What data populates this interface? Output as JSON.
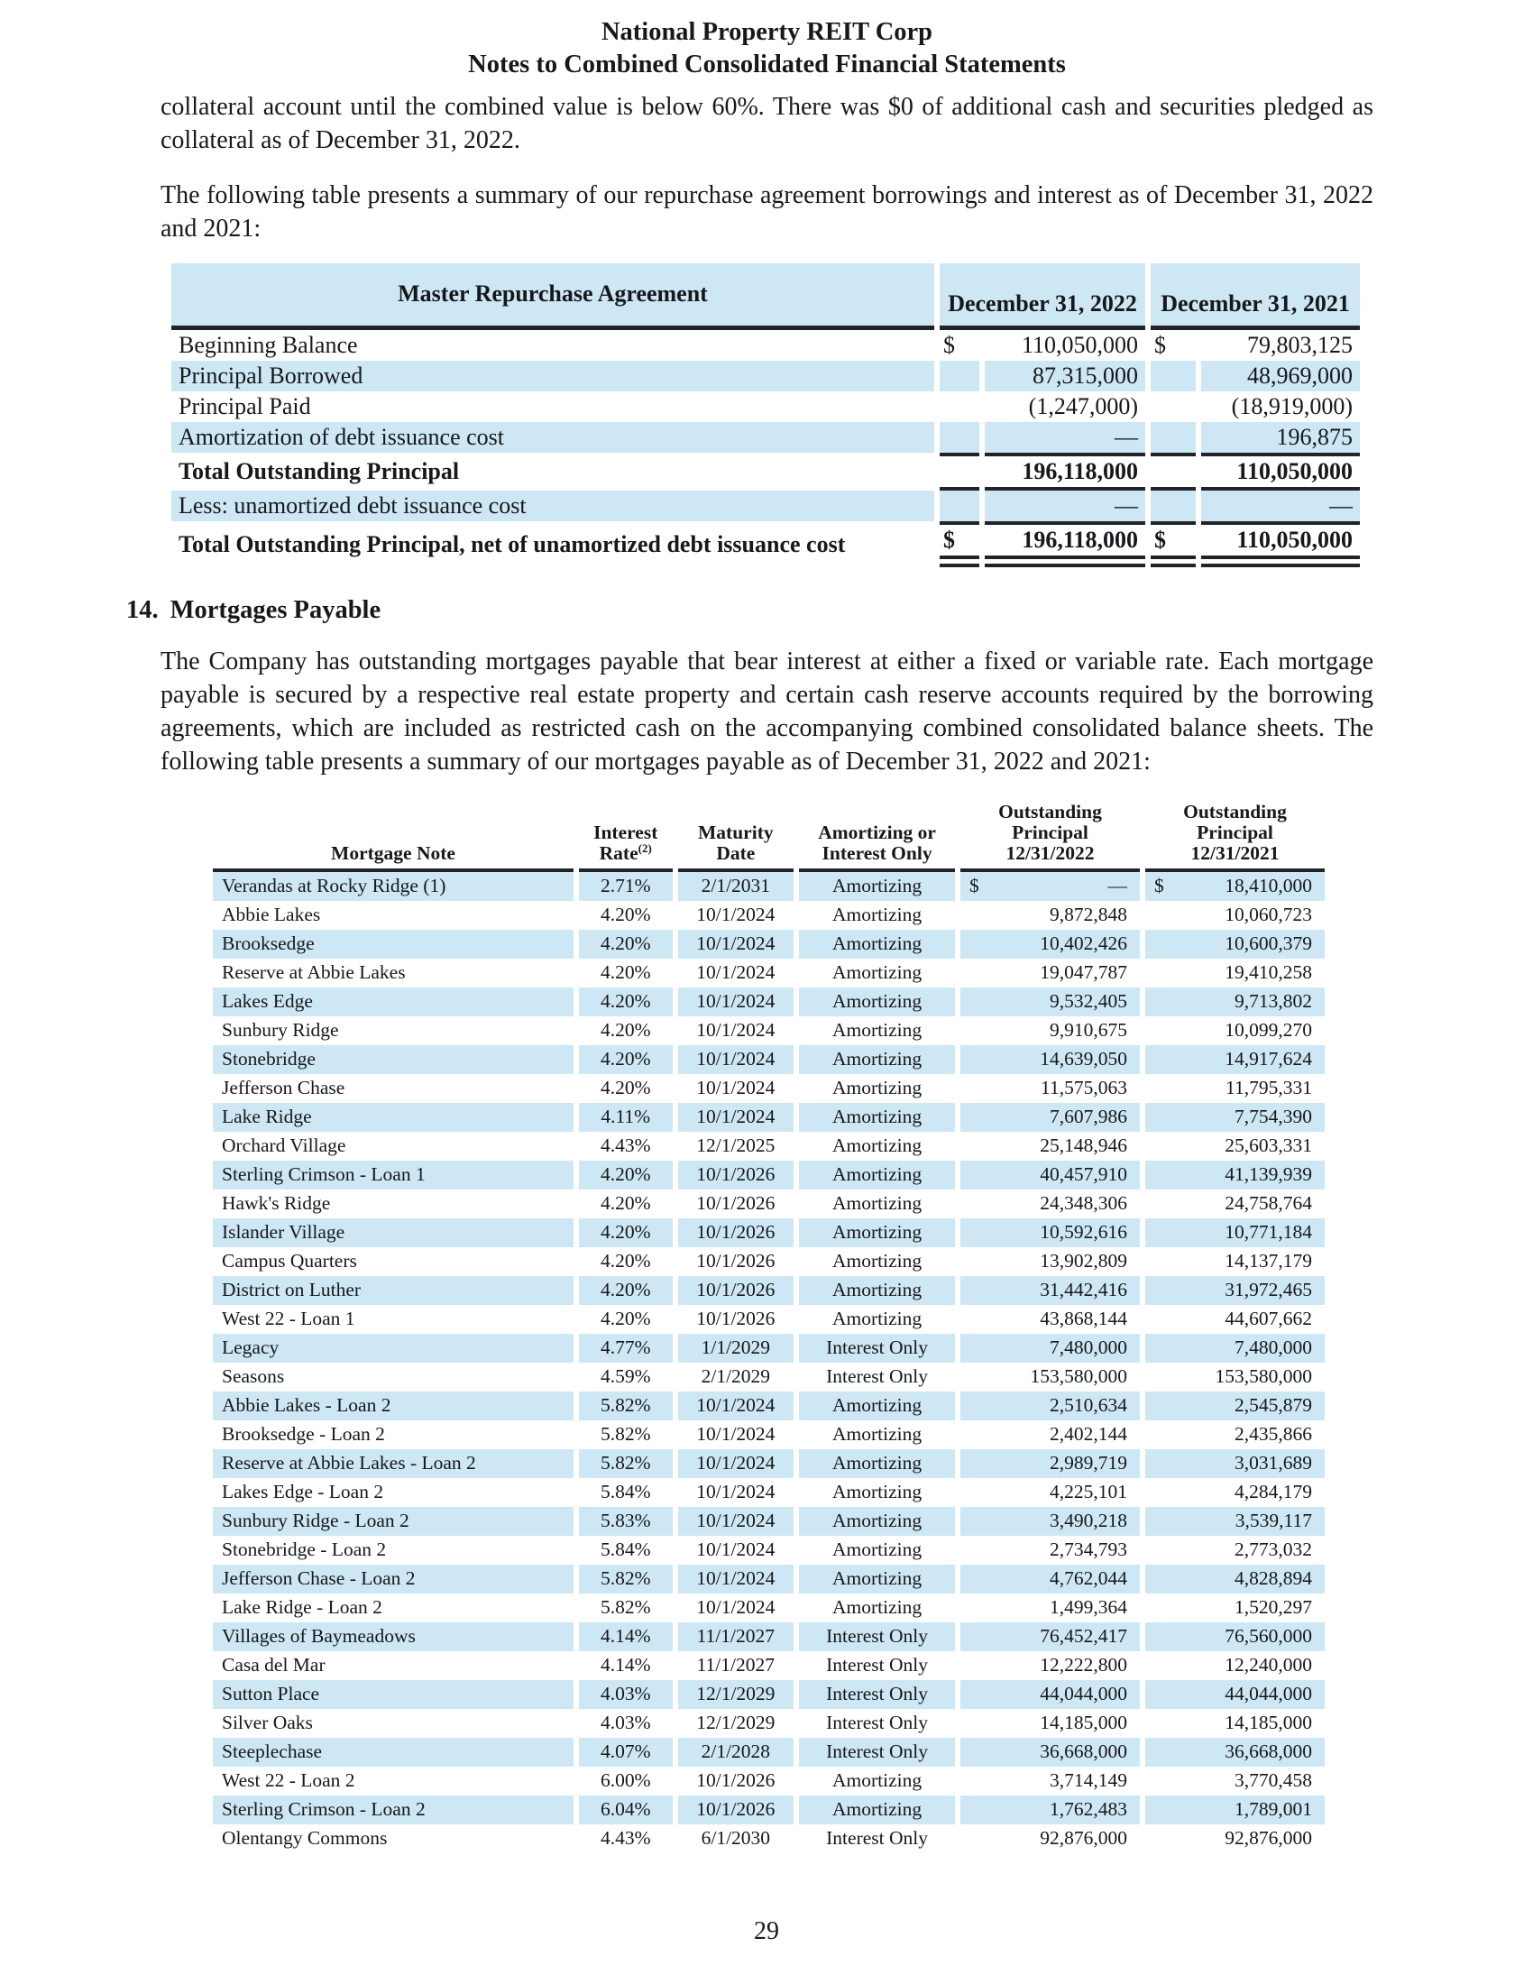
{
  "colors": {
    "row_highlight": "#cde7f4",
    "rule": "#202428"
  },
  "page": {
    "header_line1": "National Property REIT Corp",
    "header_line2": "Notes to Combined Consolidated Financial Statements",
    "para1": "collateral account until the combined value is below 60%. There was $0 of additional cash and securities pledged as collateral as of December 31, 2022.",
    "para2": "The following table presents a summary of our repurchase agreement borrowings and interest as of December 31, 2022 and 2021:",
    "page_number": "29"
  },
  "repurchase_table": {
    "title": "Master Repurchase Agreement",
    "col_headers": [
      "December 31, 2022",
      "December 31, 2021"
    ],
    "rows": [
      {
        "label": "Beginning Balance",
        "sym1": "$",
        "v1": "110,050,000",
        "sym2": "$",
        "v2": "79,803,125",
        "bold": false,
        "num_border": ""
      },
      {
        "label": "Principal Borrowed",
        "sym1": "",
        "v1": "87,315,000",
        "sym2": "",
        "v2": "48,969,000",
        "bold": false,
        "num_border": ""
      },
      {
        "label": "Principal Paid",
        "sym1": "",
        "v1": "(1,247,000)",
        "sym2": "",
        "v2": "(18,919,000)",
        "bold": false,
        "num_border": ""
      },
      {
        "label": "Amortization of debt issuance cost",
        "sym1": "",
        "v1": "—",
        "sym2": "",
        "v2": "196,875",
        "bold": false,
        "num_border": ""
      },
      {
        "label": "Total Outstanding Principal",
        "sym1": "",
        "v1": "196,118,000",
        "sym2": "",
        "v2": "110,050,000",
        "bold": true,
        "num_border": "tb"
      },
      {
        "label": "Less: unamortized debt issuance cost",
        "sym1": "",
        "v1": "—",
        "sym2": "",
        "v2": "—",
        "bold": false,
        "num_border": ""
      },
      {
        "label": "Total Outstanding Principal, net of unamortized debt issuance cost",
        "sym1": "$",
        "v1": "196,118,000",
        "sym2": "$",
        "v2": "110,050,000",
        "bold": true,
        "num_border": "t_dbl"
      }
    ]
  },
  "section14": {
    "number": "14.",
    "title": "Mortgages Payable",
    "para": "The Company has outstanding mortgages payable that bear interest at either a fixed or variable rate. Each mortgage payable is secured by a respective real estate property and certain cash reserve accounts required by the borrowing agreements, which are included as restricted cash on the accompanying combined consolidated balance sheets. The following table presents a summary of our mortgages payable as of December 31, 2022 and 2021:"
  },
  "mortgage_table": {
    "currency_symbol": "$",
    "headers": [
      {
        "lines": [
          "Mortgage Note"
        ]
      },
      {
        "lines": [
          "Interest",
          "Rate"
        ],
        "sup": "(2)"
      },
      {
        "lines": [
          "Maturity",
          "Date"
        ]
      },
      {
        "lines": [
          "Amortizing or",
          "Interest Only"
        ]
      },
      {
        "lines": [
          "Outstanding",
          "Principal",
          "12/31/2022"
        ]
      },
      {
        "lines": [
          "Outstanding",
          "Principal",
          "12/31/2021"
        ]
      }
    ],
    "rows": [
      {
        "name": "Verandas at Rocky Ridge (1)",
        "rate": "2.71%",
        "maturity": "2/1/2031",
        "type": "Amortizing",
        "p2022": "—",
        "p2021": "18,410,000",
        "dollars": true
      },
      {
        "name": "Abbie Lakes",
        "rate": "4.20%",
        "maturity": "10/1/2024",
        "type": "Amortizing",
        "p2022": "9,872,848",
        "p2021": "10,060,723"
      },
      {
        "name": "Brooksedge",
        "rate": "4.20%",
        "maturity": "10/1/2024",
        "type": "Amortizing",
        "p2022": "10,402,426",
        "p2021": "10,600,379"
      },
      {
        "name": "Reserve at Abbie Lakes",
        "rate": "4.20%",
        "maturity": "10/1/2024",
        "type": "Amortizing",
        "p2022": "19,047,787",
        "p2021": "19,410,258"
      },
      {
        "name": "Lakes Edge",
        "rate": "4.20%",
        "maturity": "10/1/2024",
        "type": "Amortizing",
        "p2022": "9,532,405",
        "p2021": "9,713,802"
      },
      {
        "name": "Sunbury Ridge",
        "rate": "4.20%",
        "maturity": "10/1/2024",
        "type": "Amortizing",
        "p2022": "9,910,675",
        "p2021": "10,099,270"
      },
      {
        "name": "Stonebridge",
        "rate": "4.20%",
        "maturity": "10/1/2024",
        "type": "Amortizing",
        "p2022": "14,639,050",
        "p2021": "14,917,624"
      },
      {
        "name": "Jefferson Chase",
        "rate": "4.20%",
        "maturity": "10/1/2024",
        "type": "Amortizing",
        "p2022": "11,575,063",
        "p2021": "11,795,331"
      },
      {
        "name": "Lake Ridge",
        "rate": "4.11%",
        "maturity": "10/1/2024",
        "type": "Amortizing",
        "p2022": "7,607,986",
        "p2021": "7,754,390"
      },
      {
        "name": "Orchard Village",
        "rate": "4.43%",
        "maturity": "12/1/2025",
        "type": "Amortizing",
        "p2022": "25,148,946",
        "p2021": "25,603,331"
      },
      {
        "name": "Sterling Crimson - Loan 1",
        "rate": "4.20%",
        "maturity": "10/1/2026",
        "type": "Amortizing",
        "p2022": "40,457,910",
        "p2021": "41,139,939"
      },
      {
        "name": "Hawk's Ridge",
        "rate": "4.20%",
        "maturity": "10/1/2026",
        "type": "Amortizing",
        "p2022": "24,348,306",
        "p2021": "24,758,764"
      },
      {
        "name": "Islander Village",
        "rate": "4.20%",
        "maturity": "10/1/2026",
        "type": "Amortizing",
        "p2022": "10,592,616",
        "p2021": "10,771,184"
      },
      {
        "name": "Campus Quarters",
        "rate": "4.20%",
        "maturity": "10/1/2026",
        "type": "Amortizing",
        "p2022": "13,902,809",
        "p2021": "14,137,179"
      },
      {
        "name": "District on Luther",
        "rate": "4.20%",
        "maturity": "10/1/2026",
        "type": "Amortizing",
        "p2022": "31,442,416",
        "p2021": "31,972,465"
      },
      {
        "name": "West 22 - Loan 1",
        "rate": "4.20%",
        "maturity": "10/1/2026",
        "type": "Amortizing",
        "p2022": "43,868,144",
        "p2021": "44,607,662"
      },
      {
        "name": "Legacy",
        "rate": "4.77%",
        "maturity": "1/1/2029",
        "type": "Interest Only",
        "p2022": "7,480,000",
        "p2021": "7,480,000"
      },
      {
        "name": "Seasons",
        "rate": "4.59%",
        "maturity": "2/1/2029",
        "type": "Interest Only",
        "p2022": "153,580,000",
        "p2021": "153,580,000"
      },
      {
        "name": "Abbie Lakes - Loan 2",
        "rate": "5.82%",
        "maturity": "10/1/2024",
        "type": "Amortizing",
        "p2022": "2,510,634",
        "p2021": "2,545,879"
      },
      {
        "name": "Brooksedge - Loan 2",
        "rate": "5.82%",
        "maturity": "10/1/2024",
        "type": "Amortizing",
        "p2022": "2,402,144",
        "p2021": "2,435,866"
      },
      {
        "name": "Reserve at Abbie Lakes - Loan 2",
        "rate": "5.82%",
        "maturity": "10/1/2024",
        "type": "Amortizing",
        "p2022": "2,989,719",
        "p2021": "3,031,689"
      },
      {
        "name": "Lakes Edge - Loan 2",
        "rate": "5.84%",
        "maturity": "10/1/2024",
        "type": "Amortizing",
        "p2022": "4,225,101",
        "p2021": "4,284,179"
      },
      {
        "name": "Sunbury Ridge - Loan 2",
        "rate": "5.83%",
        "maturity": "10/1/2024",
        "type": "Amortizing",
        "p2022": "3,490,218",
        "p2021": "3,539,117"
      },
      {
        "name": "Stonebridge - Loan 2",
        "rate": "5.84%",
        "maturity": "10/1/2024",
        "type": "Amortizing",
        "p2022": "2,734,793",
        "p2021": "2,773,032"
      },
      {
        "name": "Jefferson Chase - Loan 2",
        "rate": "5.82%",
        "maturity": "10/1/2024",
        "type": "Amortizing",
        "p2022": "4,762,044",
        "p2021": "4,828,894"
      },
      {
        "name": "Lake Ridge - Loan 2",
        "rate": "5.82%",
        "maturity": "10/1/2024",
        "type": "Amortizing",
        "p2022": "1,499,364",
        "p2021": "1,520,297"
      },
      {
        "name": "Villages of Baymeadows",
        "rate": "4.14%",
        "maturity": "11/1/2027",
        "type": "Interest Only",
        "p2022": "76,452,417",
        "p2021": "76,560,000"
      },
      {
        "name": "Casa del Mar",
        "rate": "4.14%",
        "maturity": "11/1/2027",
        "type": "Interest Only",
        "p2022": "12,222,800",
        "p2021": "12,240,000"
      },
      {
        "name": "Sutton Place",
        "rate": "4.03%",
        "maturity": "12/1/2029",
        "type": "Interest Only",
        "p2022": "44,044,000",
        "p2021": "44,044,000"
      },
      {
        "name": "Silver Oaks",
        "rate": "4.03%",
        "maturity": "12/1/2029",
        "type": "Interest Only",
        "p2022": "14,185,000",
        "p2021": "14,185,000"
      },
      {
        "name": "Steeplechase",
        "rate": "4.07%",
        "maturity": "2/1/2028",
        "type": "Interest Only",
        "p2022": "36,668,000",
        "p2021": "36,668,000"
      },
      {
        "name": "West 22 - Loan 2",
        "rate": "6.00%",
        "maturity": "10/1/2026",
        "type": "Amortizing",
        "p2022": "3,714,149",
        "p2021": "3,770,458"
      },
      {
        "name": "Sterling Crimson - Loan 2",
        "rate": "6.04%",
        "maturity": "10/1/2026",
        "type": "Amortizing",
        "p2022": "1,762,483",
        "p2021": "1,789,001"
      },
      {
        "name": "Olentangy Commons",
        "rate": "4.43%",
        "maturity": "6/1/2030",
        "type": "Interest Only",
        "p2022": "92,876,000",
        "p2021": "92,876,000"
      }
    ]
  }
}
